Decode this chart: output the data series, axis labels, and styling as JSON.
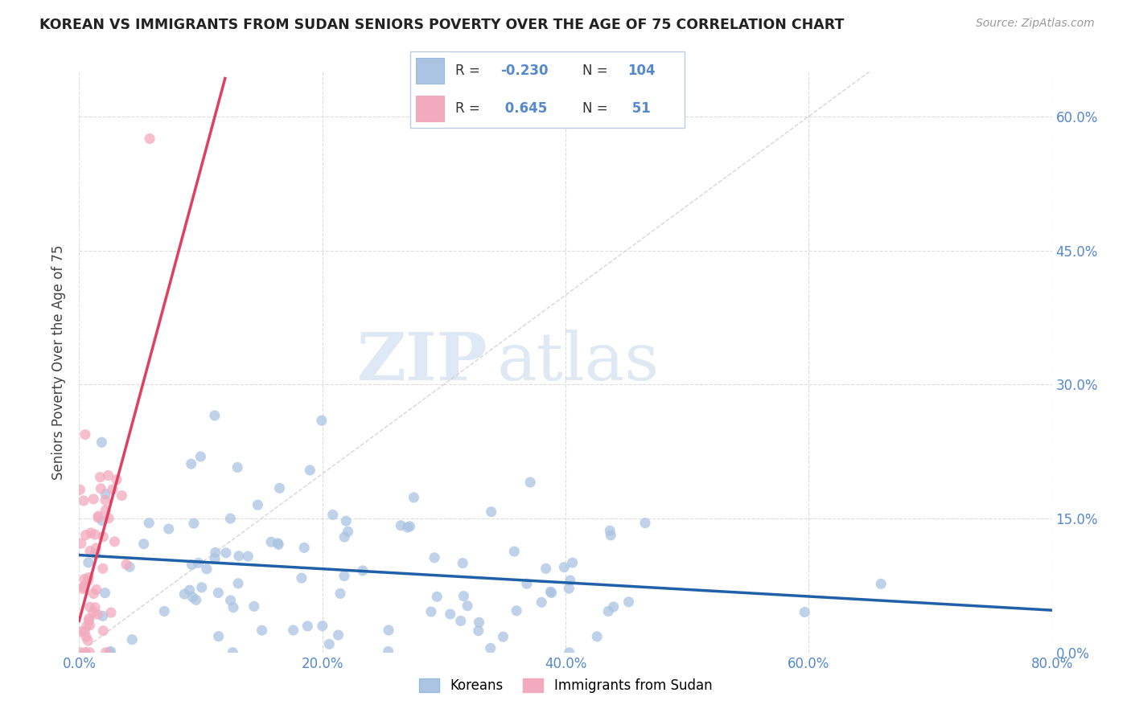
{
  "title": "KOREAN VS IMMIGRANTS FROM SUDAN SENIORS POVERTY OVER THE AGE OF 75 CORRELATION CHART",
  "source": "Source: ZipAtlas.com",
  "ylabel": "Seniors Poverty Over the Age of 75",
  "watermark_zip": "ZIP",
  "watermark_atlas": "atlas",
  "legend_label1": "Koreans",
  "legend_label2": "Immigrants from Sudan",
  "R1": -0.23,
  "N1": 104,
  "R2": 0.645,
  "N2": 51,
  "color_korean": "#aac4e2",
  "color_sudan": "#f2aabe",
  "color_line_korean": "#2060a8",
  "color_line_sudan": "#e04060",
  "color_line_dashed": "#cccccc",
  "xlim": [
    0.0,
    0.8
  ],
  "ylim": [
    0.0,
    0.65
  ],
  "x_ticks": [
    0.0,
    0.2,
    0.4,
    0.6,
    0.8
  ],
  "y_ticks": [
    0.0,
    0.15,
    0.3,
    0.45,
    0.6
  ],
  "title_color": "#222222",
  "axis_tick_color": "#5588cc",
  "grid_color": "#dddddd",
  "grid_style": "--"
}
